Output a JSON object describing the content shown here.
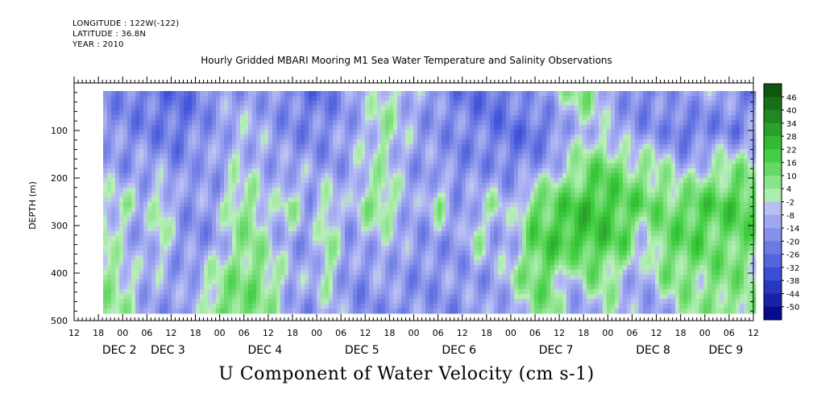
{
  "header": {
    "longitude": "LONGITUDE : 122W(-122)",
    "latitude": "LATITUDE : 36.8N",
    "year": "YEAR : 2010"
  },
  "chart_data": {
    "type": "heatmap",
    "title": "Hourly Gridded MBARI Mooring M1 Sea Water Temperature and Salinity Observations",
    "bottom_title": "U Component of Water Velocity (cm s-1)",
    "ylabel": "DEPTH (m)",
    "ylim": [
      500,
      0
    ],
    "yticks": [
      100,
      200,
      300,
      400,
      500
    ],
    "y_reversed": true,
    "x_hour_ticks": [
      "12",
      "18",
      "00",
      "06",
      "12",
      "18",
      "00",
      "06",
      "12",
      "18",
      "00",
      "06",
      "12",
      "18",
      "00",
      "06",
      "12",
      "18",
      "00",
      "06",
      "12",
      "18",
      "00",
      "06",
      "12",
      "18",
      "00",
      "06",
      "12"
    ],
    "x_day_labels": [
      {
        "label": "DEC  2",
        "hour_index": 2
      },
      {
        "label": "DEC  3",
        "hour_index": 4
      },
      {
        "label": "DEC  4",
        "hour_index": 8
      },
      {
        "label": "DEC  5",
        "hour_index": 12
      },
      {
        "label": "DEC  6",
        "hour_index": 16
      },
      {
        "label": "DEC  7",
        "hour_index": 20
      },
      {
        "label": "DEC  8",
        "hour_index": 24
      },
      {
        "label": "DEC  9",
        "hour_index": 27
      }
    ],
    "colorbar_labels": [
      "46",
      "40",
      "34",
      "28",
      "22",
      "16",
      "10",
      "4",
      "-2",
      "-8",
      "-14",
      "-20",
      "-26",
      "-32",
      "-38",
      "-44",
      "-50"
    ],
    "colorbar_range": [
      -50,
      52
    ],
    "colors": {
      "neg_dark": "#000080",
      "neg_mid": "#3a4ed8",
      "neg_light": "#b8bdf5",
      "pos_light": "#b8f0b8",
      "pos_mid": "#3ccc3c",
      "pos_dark": "#0a4a0a"
    },
    "field_description_rows": [
      [
        -14,
        -16,
        -18,
        -20,
        -22,
        -18,
        -12,
        -10,
        -8,
        -12,
        -16,
        -20,
        -18,
        -12,
        -6,
        4,
        -2,
        -8,
        -14,
        -18,
        -20,
        -22,
        -16,
        -10,
        -6,
        6,
        10,
        -4,
        -12,
        -18,
        -14,
        -8,
        -6,
        -10,
        -12,
        -16
      ],
      [
        -10,
        -14,
        -16,
        -18,
        -20,
        -14,
        -10,
        -4,
        -6,
        -10,
        -14,
        -16,
        -14,
        -10,
        -4,
        6,
        -4,
        -10,
        -12,
        -14,
        -16,
        -18,
        -20,
        -22,
        -18,
        -8,
        -2,
        -6,
        -10,
        -12,
        -14,
        -22,
        -20,
        -14,
        -18,
        -10
      ],
      [
        -6,
        -12,
        -8,
        -10,
        -14,
        -8,
        -12,
        -2,
        -4,
        -8,
        -10,
        -8,
        -12,
        -8,
        -2,
        2,
        -6,
        -12,
        -10,
        -16,
        -12,
        -14,
        -16,
        -12,
        -6,
        2,
        12,
        16,
        8,
        6,
        4,
        -6,
        -2,
        4,
        8,
        6
      ],
      [
        -4,
        6,
        -8,
        6,
        -10,
        -12,
        -8,
        8,
        6,
        -6,
        8,
        -10,
        6,
        -10,
        8,
        10,
        -4,
        -10,
        8,
        -12,
        -6,
        4,
        -8,
        14,
        16,
        20,
        24,
        22,
        18,
        16,
        12,
        14,
        20,
        18,
        22,
        16
      ],
      [
        6,
        -6,
        -10,
        4,
        -12,
        -14,
        -10,
        4,
        10,
        -4,
        -8,
        -12,
        8,
        -10,
        -6,
        -4,
        -8,
        -12,
        -10,
        -14,
        6,
        -10,
        -6,
        16,
        20,
        24,
        22,
        20,
        16,
        -6,
        14,
        16,
        18,
        12,
        14,
        10
      ],
      [
        8,
        4,
        -6,
        -8,
        -10,
        -4,
        6,
        10,
        12,
        8,
        -6,
        -8,
        4,
        -12,
        -14,
        -8,
        -10,
        -14,
        -12,
        -10,
        -12,
        -8,
        4,
        12,
        14,
        -8,
        10,
        6,
        -4,
        -8,
        8,
        10,
        6,
        12,
        10,
        4
      ],
      [
        4,
        6,
        -8,
        -10,
        -12,
        -8,
        12,
        16,
        10,
        4,
        -10,
        -12,
        -6,
        -10,
        -14,
        -12,
        -16,
        -10,
        -12,
        -14,
        -8,
        -12,
        -10,
        8,
        10,
        -10,
        -12,
        6,
        -8,
        -10,
        -12,
        4,
        6,
        8,
        6,
        10
      ]
    ]
  }
}
